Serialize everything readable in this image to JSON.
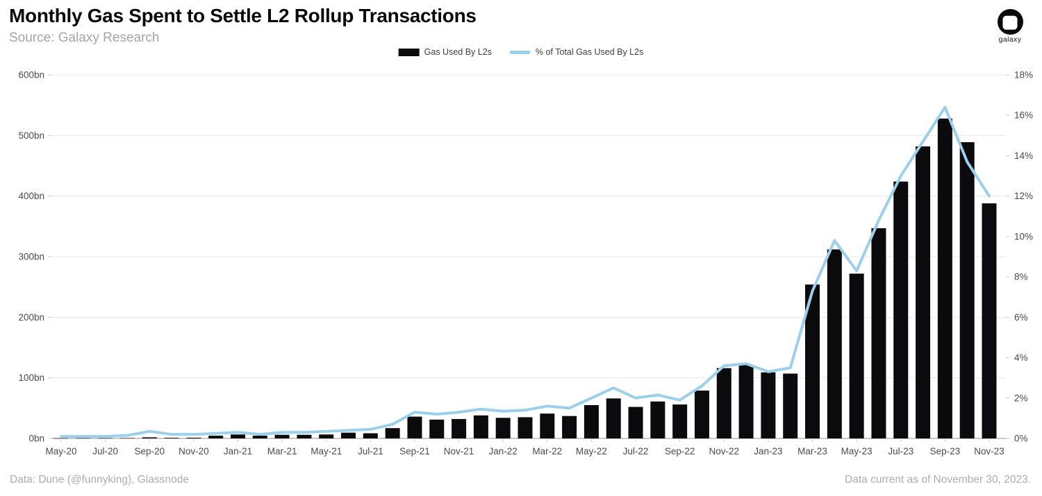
{
  "header": {
    "title": "Monthly Gas Spent to Settle L2 Rollup Transactions",
    "source": "Source: Galaxy Research",
    "logo_text": "galaxy"
  },
  "legend": {
    "bars_label": "Gas Used By L2s",
    "line_label": "% of Total Gas Used By L2s"
  },
  "footer": {
    "left": "Data: Dune (@funnyking), Glassnode",
    "right": "Data current as of November 30, 2023."
  },
  "colors": {
    "bar": "#0b0b0e",
    "line": "#9ccfec",
    "grid": "#e7e7e7",
    "zero_line": "#b5b5b5",
    "axis_text": "#4a4a4a",
    "tick": "#cccccc"
  },
  "chart_data": {
    "type": "bar",
    "title": "Monthly Gas Spent to Settle L2 Rollup Transactions",
    "x": [
      "May-20",
      "Jun-20",
      "Jul-20",
      "Aug-20",
      "Sep-20",
      "Oct-20",
      "Nov-20",
      "Dec-20",
      "Jan-21",
      "Feb-21",
      "Mar-21",
      "Apr-21",
      "May-21",
      "Jun-21",
      "Jul-21",
      "Aug-21",
      "Sep-21",
      "Oct-21",
      "Nov-21",
      "Dec-21",
      "Jan-22",
      "Feb-22",
      "Mar-22",
      "Apr-22",
      "May-22",
      "Jun-22",
      "Jul-22",
      "Aug-22",
      "Sep-22",
      "Oct-22",
      "Nov-22",
      "Dec-22",
      "Jan-23",
      "Feb-23",
      "Mar-23",
      "Apr-23",
      "May-23",
      "Jun-23",
      "Jul-23",
      "Aug-23",
      "Sep-23",
      "Oct-23",
      "Nov-23"
    ],
    "x_tick_every": 2,
    "series": [
      {
        "name": "Gas Used By L2s",
        "type": "bar",
        "axis": "left",
        "unit": "bn",
        "values": [
          0.3,
          0.4,
          0.4,
          0.6,
          1.8,
          1.0,
          1.2,
          4.5,
          6.5,
          4.5,
          6,
          6,
          6.5,
          9.5,
          8.5,
          17,
          36,
          31,
          32,
          38,
          34,
          35,
          41,
          37,
          55,
          66,
          52,
          61,
          56,
          79,
          116,
          121,
          109,
          107,
          254,
          312,
          272,
          347,
          424,
          482,
          528,
          489,
          388
        ]
      },
      {
        "name": "% of Total Gas Used By L2s",
        "type": "line",
        "axis": "right",
        "unit": "%",
        "values": [
          0.1,
          0.1,
          0.1,
          0.15,
          0.35,
          0.2,
          0.2,
          0.25,
          0.3,
          0.2,
          0.3,
          0.3,
          0.35,
          0.4,
          0.45,
          0.7,
          1.3,
          1.2,
          1.3,
          1.45,
          1.35,
          1.4,
          1.6,
          1.5,
          2.0,
          2.5,
          2.0,
          2.15,
          1.9,
          2.6,
          3.6,
          3.7,
          3.3,
          3.5,
          7.3,
          9.8,
          8.3,
          10.8,
          13.0,
          14.7,
          16.4,
          13.7,
          12.0
        ]
      }
    ],
    "y_left": {
      "min": 0,
      "max": 600,
      "step": 100,
      "suffix": "bn"
    },
    "y_right": {
      "min": 0,
      "max": 18,
      "step": 2,
      "suffix": "%"
    },
    "grid": "horizontal",
    "legend_position": "top-center"
  }
}
